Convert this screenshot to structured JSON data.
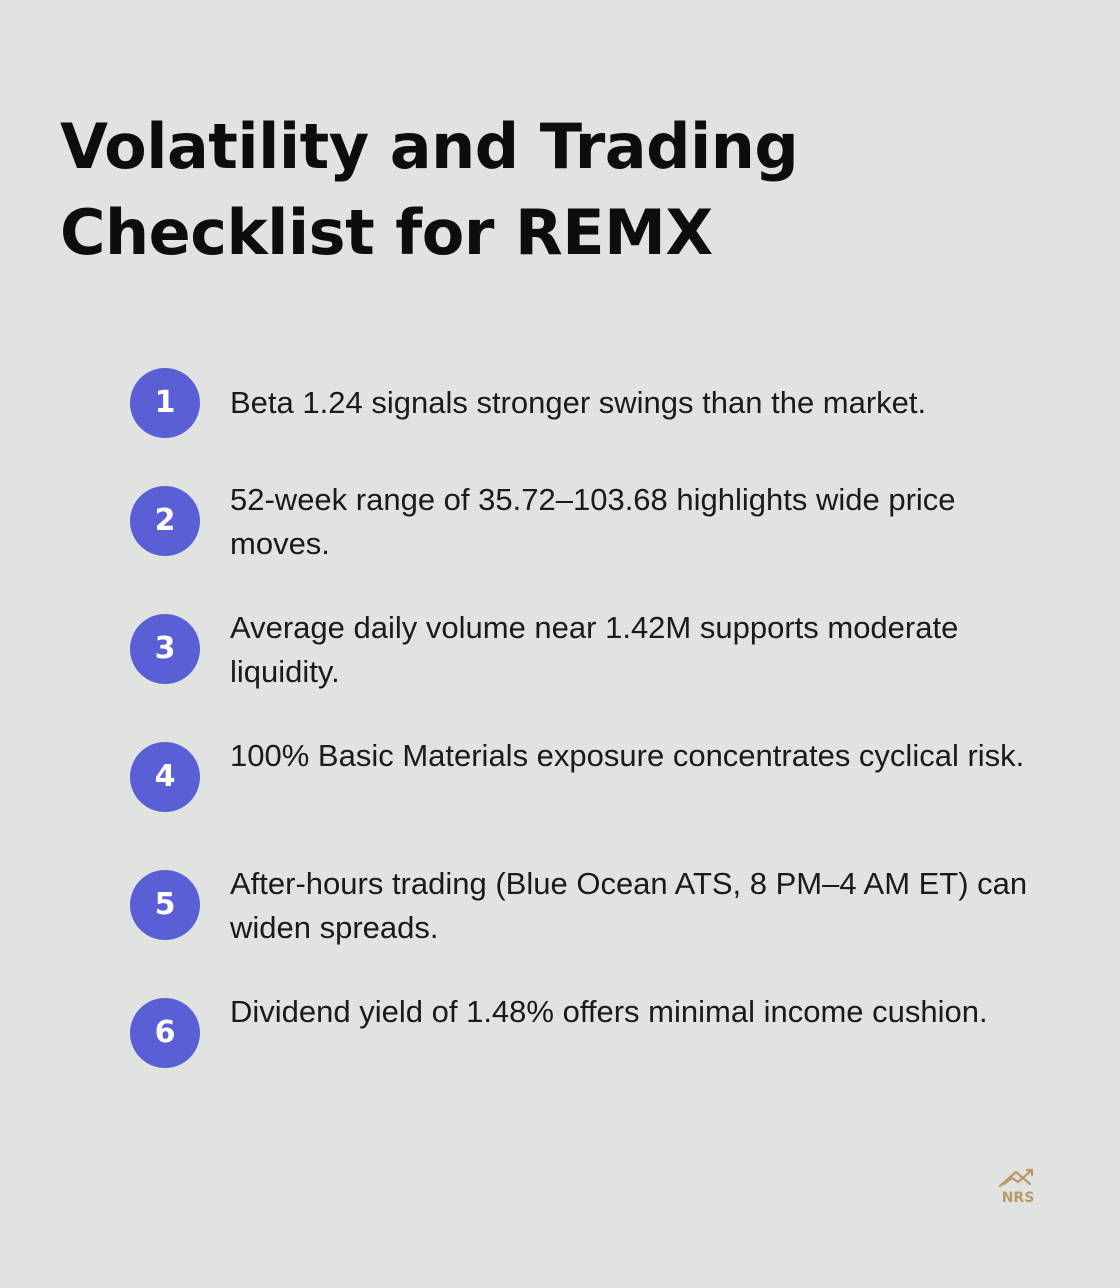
{
  "title": "Volatility and Trading Checklist for REMX",
  "items": [
    {
      "number": "1",
      "text": "Beta 1.24 signals stronger swings than the market."
    },
    {
      "number": "2",
      "text": "52-week range of 35.72–103.68 highlights wide price moves."
    },
    {
      "number": "3",
      "text": "Average daily volume near 1.42M supports moderate liquidity."
    },
    {
      "number": "4",
      "text": "100% Basic Materials exposure concentrates cyclical risk."
    },
    {
      "number": "5",
      "text": "After-hours trading (Blue Ocean ATS, 8 PM–4 AM ET) can widen spreads."
    },
    {
      "number": "6",
      "text": "Dividend yield of 1.48% offers minimal income cushion."
    }
  ],
  "logo": {
    "text": "NRS",
    "icon": "house-chart-logo-icon"
  },
  "colors": {
    "background": "#e1e2e2",
    "badge": "#5b5fd6",
    "title": "#0d0d0d",
    "logo": "#b89a62"
  }
}
